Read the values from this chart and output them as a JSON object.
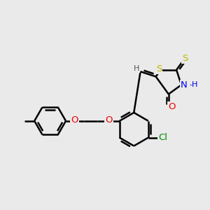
{
  "bg_color": "#eaeaea",
  "bond_color": "#000000",
  "bond_width": 1.8,
  "dbo": 0.055,
  "atom_colors": {
    "S": "#b8b800",
    "N": "#0000ee",
    "O": "#ee0000",
    "Cl": "#008800",
    "H": "#555555"
  },
  "font_size": 9.5
}
